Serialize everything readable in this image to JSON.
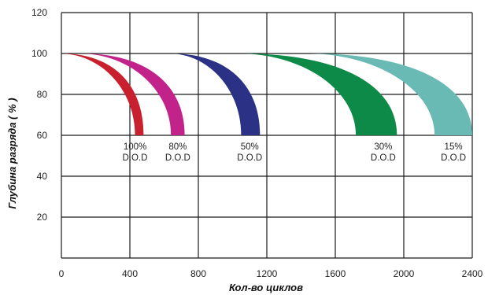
{
  "chart_data": {
    "type": "area",
    "title": "",
    "xlabel": "Кол-во циклов",
    "ylabel": "Глубина разряда ( % )",
    "xlim": [
      0,
      2400
    ],
    "ylim": [
      0,
      120
    ],
    "x_ticks": [
      "0",
      "400",
      "800",
      "1200",
      "1600",
      "2000",
      "2400"
    ],
    "y_ticks": [
      "20",
      "40",
      "60",
      "80",
      "100",
      "120"
    ],
    "grid": true,
    "series": [
      {
        "name_line1": "100%",
        "name_line2": "D.O.D",
        "color": "#c8202e",
        "start_x": 0,
        "end_x_inner": 430,
        "end_x_outer": 480,
        "x_label": 430
      },
      {
        "name_line1": "80%",
        "name_line2": "D.O.D",
        "color": "#c2238b",
        "start_x": 120,
        "end_x_inner": 640,
        "end_x_outer": 720,
        "x_label": 680
      },
      {
        "name_line1": "50%",
        "name_line2": "D.O.D",
        "color": "#2b3184",
        "start_x": 640,
        "end_x_inner": 1050,
        "end_x_outer": 1160,
        "x_label": 1100
      },
      {
        "name_line1": "30%",
        "name_line2": "D.O.D",
        "color": "#0d8a48",
        "start_x": 1050,
        "end_x_inner": 1720,
        "end_x_outer": 1960,
        "x_label": 1880
      },
      {
        "name_line1": "15%",
        "name_line2": "D.O.D",
        "color": "#69b9b4",
        "start_x": 1450,
        "end_x_inner": 2180,
        "end_x_outer": 2400,
        "x_label": 2290
      }
    ]
  }
}
